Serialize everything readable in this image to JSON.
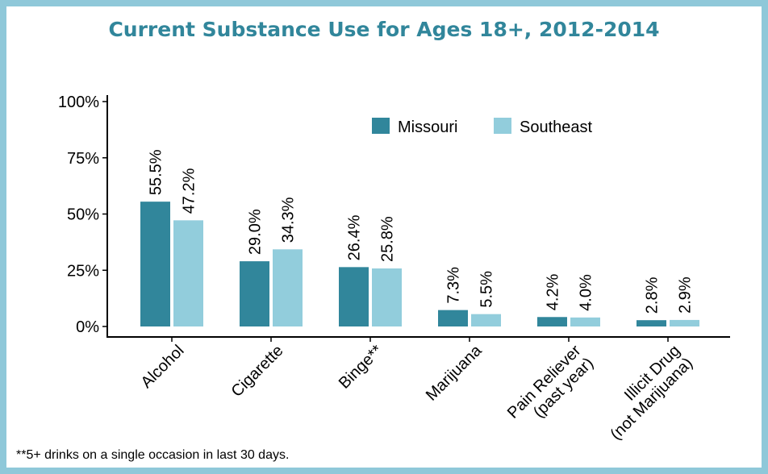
{
  "chart_data": {
    "type": "bar",
    "title": "Current Substance Use for Ages 18+, 2012-2014",
    "categories": [
      "Alcohol",
      "Cigarette",
      "Binge**",
      "Marijuana",
      "Pain Reliever\n(past year)",
      "Illicit Drug\n(not Marijuana)"
    ],
    "series": [
      {
        "name": "Missouri",
        "values": [
          55.5,
          29.0,
          26.4,
          7.3,
          4.2,
          2.8
        ],
        "color": "#31869b"
      },
      {
        "name": "Southeast",
        "values": [
          47.2,
          34.3,
          25.8,
          5.5,
          4.0,
          2.9
        ],
        "color": "#92cddc"
      }
    ],
    "data_labels": [
      [
        "55.5%",
        "29.0%",
        "26.4%",
        "7.3%",
        "4.2%",
        "2.8%"
      ],
      [
        "47.2%",
        "34.3%",
        "25.8%",
        "5.5%",
        "4.0%",
        "2.9%"
      ]
    ],
    "yticks": [
      "0%",
      "25%",
      "50%",
      "75%",
      "100%"
    ],
    "ytick_values": [
      0,
      25,
      50,
      75,
      100
    ],
    "ylim": [
      0,
      100
    ],
    "legend_position": "top-right",
    "grid": false,
    "xlabel": "",
    "ylabel": ""
  },
  "footnote": "**5+ drinks on a single occasion in last 30 days.",
  "colors": {
    "frame": "#8fc8d9",
    "title": "#31869b"
  }
}
